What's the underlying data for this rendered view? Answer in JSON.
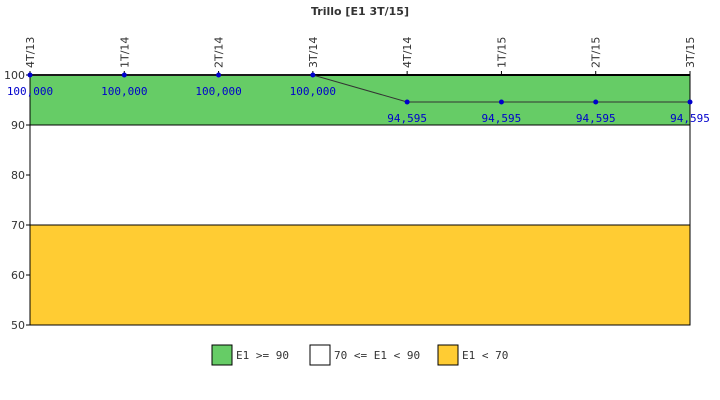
{
  "chart_data": {
    "type": "line",
    "title": "Trillo [E1 3T/15]",
    "xlabel": "",
    "ylabel": "",
    "categories": [
      "4T/13",
      "1T/14",
      "2T/14",
      "3T/14",
      "4T/14",
      "1T/15",
      "2T/15",
      "3T/15"
    ],
    "series": [
      {
        "values": [
          100.0,
          100.0,
          100.0,
          100.0,
          94.595,
          94.595,
          94.595,
          94.595
        ],
        "data_labels": [
          "100,000",
          "100,000",
          "100,000",
          "100,000",
          "94,595",
          "94,595",
          "94,595",
          "94,595"
        ],
        "color": "#0000cc"
      }
    ],
    "ylim": [
      50,
      100
    ],
    "yticks": [
      "50",
      "60",
      "70",
      "80",
      "90",
      "100"
    ],
    "bands": [
      {
        "label": "E1 >= 90",
        "from": 90,
        "to": 100,
        "color": "#66cc66"
      },
      {
        "label": "70 <= E1 < 90",
        "from": 70,
        "to": 90,
        "color": "#ffffff"
      },
      {
        "label": "E1 < 70",
        "from": 50,
        "to": 70,
        "color": "#ffcc33"
      }
    ],
    "legend_position": "bottom",
    "grid": false
  },
  "colors": {
    "line": "#333333",
    "point": "#0000cc",
    "axis": "#000000"
  }
}
